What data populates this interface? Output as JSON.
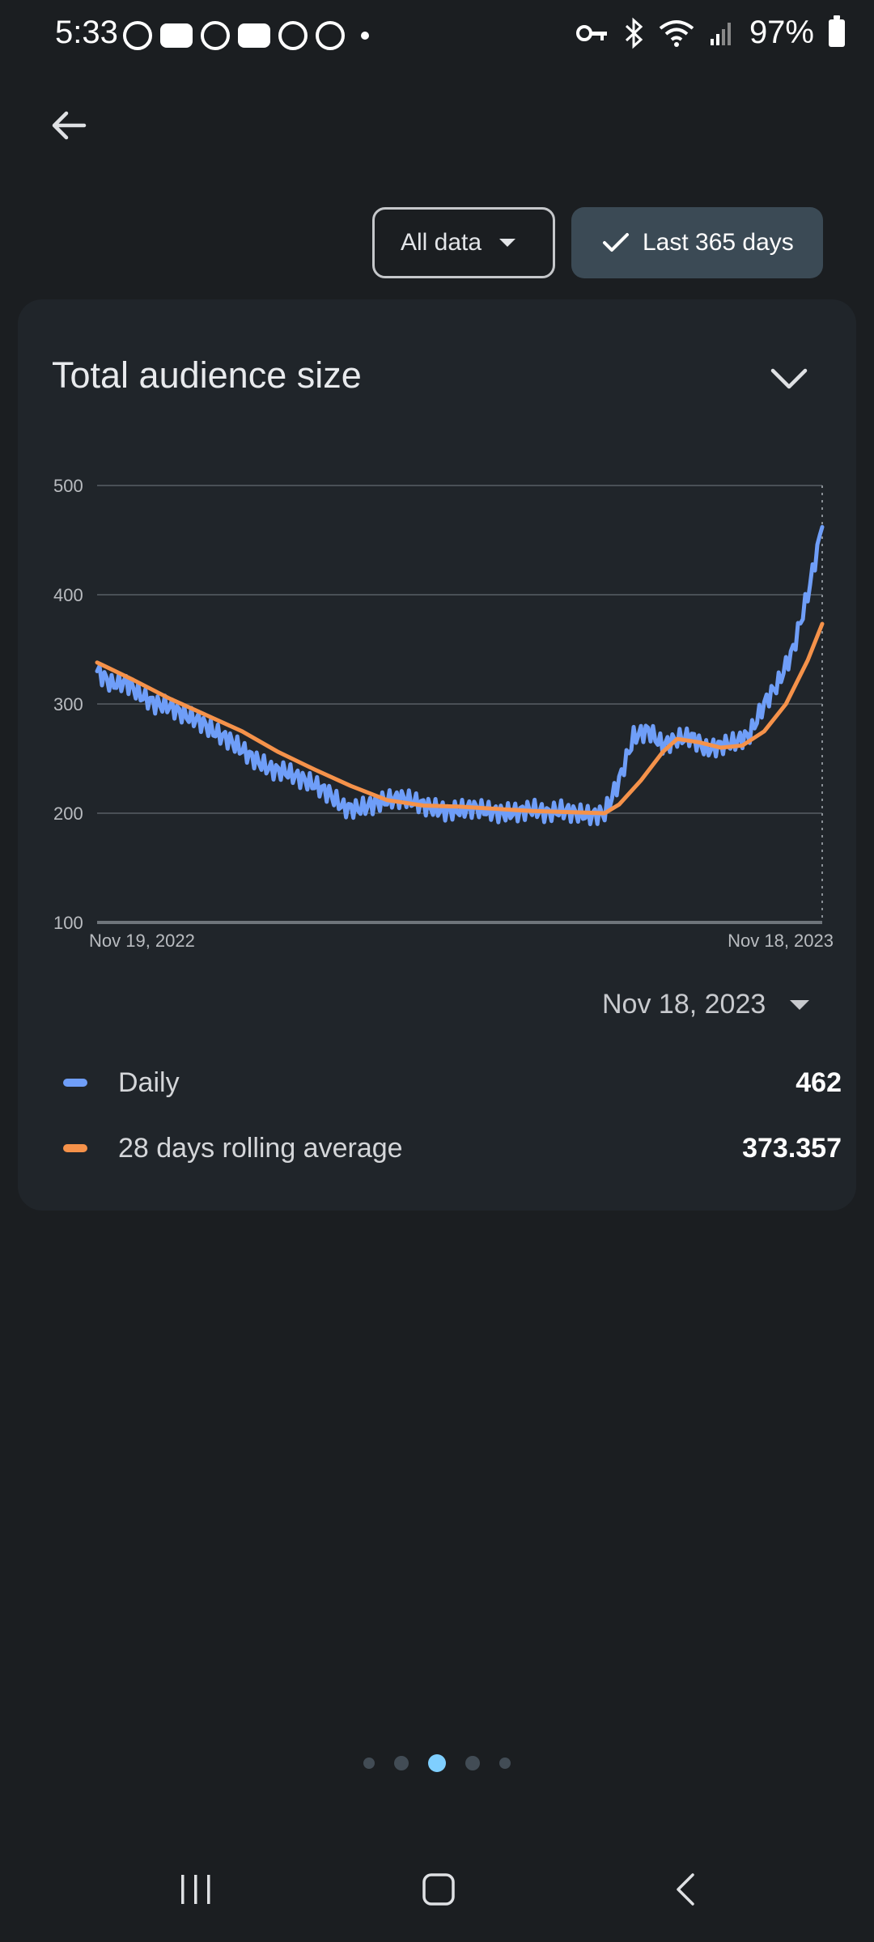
{
  "status_bar": {
    "time": "5:33",
    "battery_percent": "97%",
    "left_icons": [
      "kiwi-icon",
      "youtube-icon",
      "circle-app-icon",
      "voicemail-icon",
      "reddit-icon",
      "app-icon",
      "dot"
    ],
    "right_icons": [
      "vpn-key-icon",
      "bluetooth-icon",
      "wifi-icon",
      "signal-icon",
      "battery-icon"
    ]
  },
  "filters": {
    "all_data_label": "All data",
    "last_365_label": "Last 365 days"
  },
  "card": {
    "title": "Total audience size",
    "selected_date": "Nov 18, 2023",
    "legend": [
      {
        "label": "Daily",
        "value": "462",
        "color": "#6f9ef8"
      },
      {
        "label": "28 days rolling average",
        "value": "373.357",
        "color": "#f5924a"
      }
    ]
  },
  "chart_data": {
    "type": "line",
    "x_start_label": "Nov 19, 2022",
    "x_end_label": "Nov 18, 2023",
    "y_ticks": [
      "500",
      "400",
      "300",
      "200",
      "100"
    ],
    "ylim": [
      100,
      500
    ],
    "grid": true,
    "series": [
      {
        "name": "Daily",
        "color": "#6f9ef8",
        "points": [
          [
            0,
            330
          ],
          [
            0.02,
            318
          ],
          [
            0.04,
            320
          ],
          [
            0.06,
            308
          ],
          [
            0.08,
            300
          ],
          [
            0.1,
            298
          ],
          [
            0.12,
            290
          ],
          [
            0.14,
            285
          ],
          [
            0.16,
            275
          ],
          [
            0.18,
            268
          ],
          [
            0.2,
            258
          ],
          [
            0.22,
            248
          ],
          [
            0.24,
            240
          ],
          [
            0.26,
            238
          ],
          [
            0.28,
            232
          ],
          [
            0.3,
            226
          ],
          [
            0.32,
            218
          ],
          [
            0.34,
            205
          ],
          [
            0.36,
            204
          ],
          [
            0.38,
            208
          ],
          [
            0.4,
            212
          ],
          [
            0.42,
            214
          ],
          [
            0.44,
            210
          ],
          [
            0.46,
            205
          ],
          [
            0.48,
            202
          ],
          [
            0.5,
            203
          ],
          [
            0.52,
            205
          ],
          [
            0.54,
            202
          ],
          [
            0.56,
            200
          ],
          [
            0.58,
            201
          ],
          [
            0.6,
            204
          ],
          [
            0.62,
            200
          ],
          [
            0.64,
            203
          ],
          [
            0.66,
            200
          ],
          [
            0.68,
            198
          ],
          [
            0.7,
            200
          ],
          [
            0.72,
            230
          ],
          [
            0.74,
            270
          ],
          [
            0.76,
            276
          ],
          [
            0.78,
            262
          ],
          [
            0.8,
            268
          ],
          [
            0.82,
            270
          ],
          [
            0.84,
            258
          ],
          [
            0.86,
            262
          ],
          [
            0.88,
            265
          ],
          [
            0.9,
            272
          ],
          [
            0.92,
            300
          ],
          [
            0.94,
            320
          ],
          [
            0.96,
            350
          ],
          [
            0.98,
            400
          ],
          [
            1.0,
            462
          ]
        ]
      },
      {
        "name": "28 days rolling average",
        "color": "#f5924a",
        "points": [
          [
            0,
            338
          ],
          [
            0.05,
            322
          ],
          [
            0.1,
            305
          ],
          [
            0.15,
            290
          ],
          [
            0.2,
            275
          ],
          [
            0.25,
            256
          ],
          [
            0.3,
            240
          ],
          [
            0.35,
            225
          ],
          [
            0.4,
            212
          ],
          [
            0.45,
            207
          ],
          [
            0.5,
            206
          ],
          [
            0.55,
            204
          ],
          [
            0.6,
            202
          ],
          [
            0.65,
            201
          ],
          [
            0.7,
            200
          ],
          [
            0.72,
            208
          ],
          [
            0.75,
            230
          ],
          [
            0.78,
            256
          ],
          [
            0.8,
            268
          ],
          [
            0.83,
            265
          ],
          [
            0.86,
            260
          ],
          [
            0.89,
            262
          ],
          [
            0.92,
            275
          ],
          [
            0.95,
            300
          ],
          [
            0.98,
            340
          ],
          [
            1.0,
            373.357
          ]
        ]
      }
    ]
  },
  "pager": {
    "count": 5,
    "active_index": 2
  }
}
